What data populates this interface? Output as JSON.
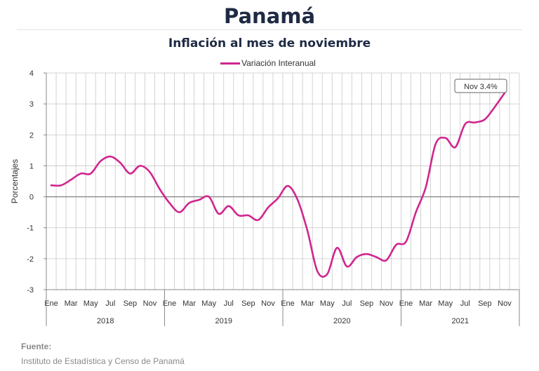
{
  "header": {
    "title": "Panamá",
    "subtitle": "Inflación al mes de noviembre"
  },
  "legend": {
    "label": "Variación Interanual"
  },
  "annotation": {
    "text": "Nov 3.4%"
  },
  "footer": {
    "source_label": "Fuente:",
    "source_text": "Instituto de Estadística y Censo de Panamá"
  },
  "colors": {
    "series": "#d0268f",
    "grid": "#c8c8c8",
    "axis": "#888888"
  },
  "chart_data": {
    "type": "line",
    "ylabel": "Porcentajes",
    "ylim": [
      -3,
      4
    ],
    "yticks": [
      4,
      3,
      2,
      1,
      0,
      -1,
      -2,
      -3
    ],
    "tick_labels": [
      "Ene",
      "Mar",
      "May",
      "Jul",
      "Sep",
      "Nov"
    ],
    "tick_month_indices": [
      0,
      2,
      4,
      6,
      8,
      10
    ],
    "years": [
      "2018",
      "2019",
      "2020",
      "2021"
    ],
    "grid": true,
    "legend_position": "top-center",
    "series": [
      {
        "name": "Variación Interanual",
        "x_start": "2018-01",
        "x_end": "2021-11",
        "values": [
          0.37,
          0.37,
          0.55,
          0.75,
          0.75,
          1.15,
          1.3,
          1.1,
          0.75,
          1.0,
          0.8,
          0.25,
          -0.2,
          -0.5,
          -0.2,
          -0.1,
          0.0,
          -0.55,
          -0.3,
          -0.6,
          -0.6,
          -0.75,
          -0.35,
          -0.05,
          0.35,
          -0.1,
          -1.1,
          -2.4,
          -2.5,
          -1.65,
          -2.25,
          -1.95,
          -1.85,
          -1.95,
          -2.05,
          -1.55,
          -1.45,
          -0.5,
          0.3,
          1.7,
          1.9,
          1.6,
          2.35,
          2.4,
          2.5,
          2.9,
          3.35
        ]
      }
    ]
  }
}
